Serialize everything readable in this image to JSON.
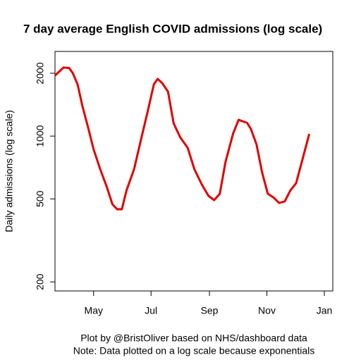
{
  "chart_data": {
    "type": "line",
    "title": "7 day average English COVID admissions (log scale)",
    "y_label": "Daily admissions (log scale)",
    "caption": [
      "Plot by @BristOliver based on NHS/dashboard data",
      "Note: Data plotted on a log scale because exponentials"
    ],
    "log_y": true,
    "series": [
      {
        "color": "#e00000",
        "x": [
          81,
          90,
          96,
          100,
          105,
          110,
          116,
          122,
          129,
          136,
          142,
          147,
          152,
          157,
          165,
          172,
          180,
          186,
          190,
          195,
          201,
          207,
          214,
          222,
          229,
          237,
          244,
          250,
          256,
          262,
          270,
          276,
          280,
          285,
          289,
          295,
          301,
          307,
          313,
          319,
          325,
          331,
          337,
          343,
          351
        ],
        "values": [
          1950,
          2130,
          2120,
          2000,
          1770,
          1400,
          1107,
          864,
          694,
          571,
          471,
          446,
          446,
          550,
          694,
          948,
          1346,
          1770,
          1880,
          1790,
          1634,
          1151,
          986,
          877,
          694,
          585,
          517,
          493,
          529,
          749,
          1024,
          1197,
          1178,
          1157,
          1082,
          912,
          668,
          529,
          508,
          478,
          486,
          550,
          594,
          749,
          1024
        ]
      }
    ],
    "xlim": [
      81,
      376
    ],
    "xticks": [
      {
        "value": 122,
        "label": "May"
      },
      {
        "value": 183,
        "label": "Jul"
      },
      {
        "value": 245,
        "label": "Sep"
      },
      {
        "value": 306,
        "label": "Nov"
      },
      {
        "value": 367,
        "label": "Jan"
      }
    ],
    "ylim": [
      181,
      2545
    ],
    "yticks": [
      200,
      500,
      1000,
      2000
    ]
  }
}
